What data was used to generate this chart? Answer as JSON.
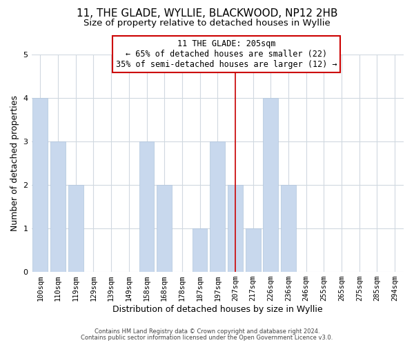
{
  "title": "11, THE GLADE, WYLLIE, BLACKWOOD, NP12 2HB",
  "subtitle": "Size of property relative to detached houses in Wyllie",
  "xlabel": "Distribution of detached houses by size in Wyllie",
  "ylabel": "Number of detached properties",
  "bar_labels": [
    "100sqm",
    "110sqm",
    "119sqm",
    "129sqm",
    "139sqm",
    "149sqm",
    "158sqm",
    "168sqm",
    "178sqm",
    "187sqm",
    "197sqm",
    "207sqm",
    "217sqm",
    "226sqm",
    "236sqm",
    "246sqm",
    "255sqm",
    "265sqm",
    "275sqm",
    "285sqm",
    "294sqm"
  ],
  "bar_values": [
    4,
    3,
    2,
    0,
    0,
    0,
    3,
    2,
    0,
    1,
    3,
    2,
    1,
    4,
    2,
    0,
    0,
    0,
    0,
    0,
    0
  ],
  "bar_color": "#c8d8ed",
  "bar_edge_color": "#afc5dc",
  "highlight_index": 11,
  "vline_color": "#cc0000",
  "annotation_line1": "11 THE GLADE: 205sqm",
  "annotation_line2": "← 65% of detached houses are smaller (22)",
  "annotation_line3": "35% of semi-detached houses are larger (12) →",
  "annotation_box_color": "#ffffff",
  "annotation_box_edgecolor": "#cc0000",
  "ylim": [
    0,
    5
  ],
  "yticks": [
    0,
    1,
    2,
    3,
    4,
    5
  ],
  "footer_line1": "Contains HM Land Registry data © Crown copyright and database right 2024.",
  "footer_line2": "Contains public sector information licensed under the Open Government Licence v3.0.",
  "background_color": "#ffffff",
  "grid_color": "#d0d8e0",
  "title_fontsize": 11,
  "subtitle_fontsize": 9.5,
  "axis_label_fontsize": 9,
  "tick_fontsize": 7.5,
  "annotation_fontsize": 8.5,
  "footer_fontsize": 6
}
